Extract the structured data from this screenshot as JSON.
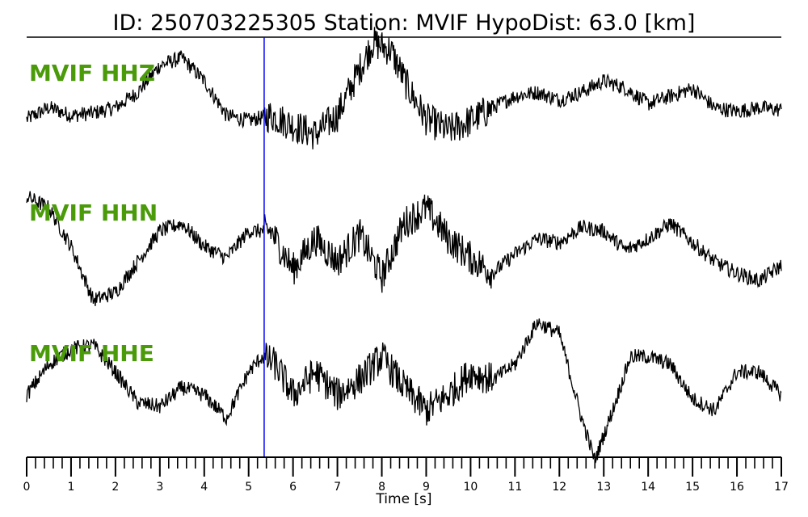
{
  "chart_data": {
    "type": "line",
    "title": "ID: 250703225305   Station: MVIF   HypoDist:     63.0 [km]",
    "xlabel": "Time [s]",
    "ylabel": "",
    "xlim": [
      0,
      17
    ],
    "x_major_ticks": [
      0,
      1,
      2,
      3,
      4,
      5,
      6,
      7,
      8,
      9,
      10,
      11,
      12,
      13,
      14,
      15,
      16,
      17
    ],
    "x_minor_step": 0.2,
    "grid": false,
    "marker_time": 5.35,
    "colors": {
      "trace": "#000000",
      "marker": "#0000ff",
      "channel_label": "#4a9a0a"
    },
    "series": [
      {
        "name": "MVIF HHZ",
        "ylim": [
          -1,
          1
        ],
        "points": [
          [
            0,
            -0.1
          ],
          [
            0.5,
            0.05
          ],
          [
            1,
            -0.05
          ],
          [
            1.5,
            -0.02
          ],
          [
            2,
            0.05
          ],
          [
            2.5,
            0.25
          ],
          [
            3,
            0.6
          ],
          [
            3.5,
            0.7
          ],
          [
            4,
            0.4
          ],
          [
            4.5,
            -0.05
          ],
          [
            5,
            -0.12
          ],
          [
            5.5,
            -0.05
          ],
          [
            6,
            -0.18
          ],
          [
            6.5,
            -0.3
          ],
          [
            7,
            -0.05
          ],
          [
            7.5,
            0.55
          ],
          [
            7.8,
            0.9
          ],
          [
            8.2,
            0.8
          ],
          [
            8.6,
            0.3
          ],
          [
            9,
            -0.1
          ],
          [
            9.5,
            -0.25
          ],
          [
            10,
            -0.12
          ],
          [
            10.5,
            0.05
          ],
          [
            11,
            0.2
          ],
          [
            11.5,
            0.25
          ],
          [
            12,
            0.15
          ],
          [
            12.5,
            0.25
          ],
          [
            13,
            0.4
          ],
          [
            13.5,
            0.3
          ],
          [
            14,
            0.1
          ],
          [
            14.5,
            0.2
          ],
          [
            15,
            0.3
          ],
          [
            15.5,
            0.05
          ],
          [
            16,
            0.0
          ],
          [
            16.5,
            0.05
          ],
          [
            17,
            0.02
          ]
        ]
      },
      {
        "name": "MVIF HHN",
        "ylim": [
          -1,
          1
        ],
        "points": [
          [
            0,
            0.65
          ],
          [
            0.5,
            0.5
          ],
          [
            1,
            0.0
          ],
          [
            1.5,
            -0.7
          ],
          [
            2,
            -0.6
          ],
          [
            2.5,
            -0.2
          ],
          [
            3,
            0.2
          ],
          [
            3.5,
            0.3
          ],
          [
            4,
            0.0
          ],
          [
            4.5,
            -0.15
          ],
          [
            5,
            0.2
          ],
          [
            5.5,
            0.2
          ],
          [
            6,
            -0.3
          ],
          [
            6.5,
            0.1
          ],
          [
            7,
            -0.2
          ],
          [
            7.5,
            0.15
          ],
          [
            8,
            -0.4
          ],
          [
            8.5,
            0.3
          ],
          [
            9,
            0.5
          ],
          [
            9.5,
            0.1
          ],
          [
            10,
            -0.15
          ],
          [
            10.5,
            -0.35
          ],
          [
            11,
            -0.1
          ],
          [
            11.5,
            0.1
          ],
          [
            12,
            0.05
          ],
          [
            12.5,
            0.25
          ],
          [
            13,
            0.2
          ],
          [
            13.5,
            -0.05
          ],
          [
            14,
            0.1
          ],
          [
            14.5,
            0.3
          ],
          [
            15,
            0.05
          ],
          [
            15.5,
            -0.2
          ],
          [
            16,
            -0.35
          ],
          [
            16.5,
            -0.45
          ],
          [
            17,
            -0.25
          ]
        ]
      },
      {
        "name": "MVIF HHE",
        "ylim": [
          -1,
          1
        ],
        "points": [
          [
            0,
            -0.2
          ],
          [
            0.5,
            0.2
          ],
          [
            1,
            0.4
          ],
          [
            1.5,
            0.45
          ],
          [
            2,
            0.1
          ],
          [
            2.5,
            -0.3
          ],
          [
            3,
            -0.35
          ],
          [
            3.5,
            -0.1
          ],
          [
            4,
            -0.2
          ],
          [
            4.5,
            -0.5
          ],
          [
            5,
            0.1
          ],
          [
            5.3,
            0.3
          ],
          [
            5.6,
            0.2
          ],
          [
            6,
            -0.2
          ],
          [
            6.5,
            0.1
          ],
          [
            7,
            -0.2
          ],
          [
            7.5,
            0.0
          ],
          [
            8,
            0.3
          ],
          [
            8.5,
            -0.1
          ],
          [
            9,
            -0.4
          ],
          [
            9.5,
            -0.2
          ],
          [
            10,
            0.1
          ],
          [
            10.5,
            0.0
          ],
          [
            11,
            0.2
          ],
          [
            11.5,
            0.75
          ],
          [
            12,
            0.6
          ],
          [
            12.5,
            -0.5
          ],
          [
            12.8,
            -1.05
          ],
          [
            13.2,
            -0.4
          ],
          [
            13.6,
            0.3
          ],
          [
            14,
            0.3
          ],
          [
            14.5,
            0.2
          ],
          [
            15,
            -0.25
          ],
          [
            15.5,
            -0.4
          ],
          [
            16,
            0.1
          ],
          [
            16.5,
            0.1
          ],
          [
            17,
            -0.2
          ]
        ]
      }
    ]
  }
}
